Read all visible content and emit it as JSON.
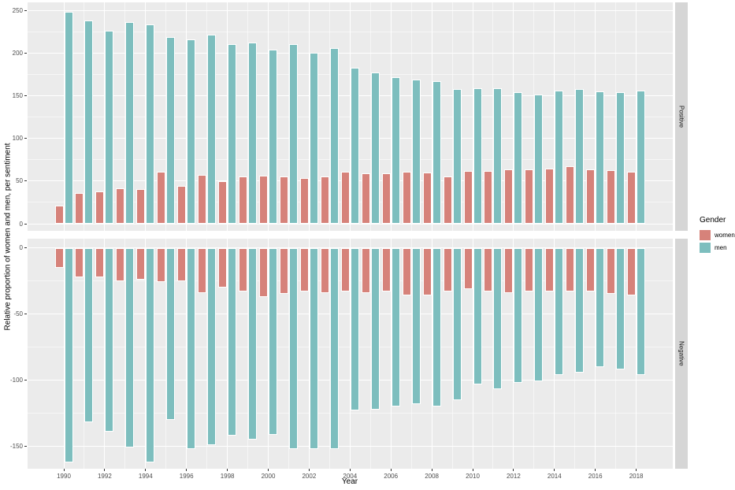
{
  "chart_data": {
    "type": "bar",
    "title": "",
    "xlabel": "Year",
    "ylabel": "Relative proportion of women and men, per sentiment",
    "grid": true,
    "panel_background": "#ebebeb",
    "legend": {
      "title": "Gender",
      "position": "right",
      "items": [
        {
          "label": "women",
          "color": "#d6827a"
        },
        {
          "label": "men",
          "color": "#7dbebe"
        }
      ]
    },
    "facets": [
      {
        "label": "Positive",
        "yticks": [
          0,
          50,
          100,
          150,
          200,
          250
        ],
        "ylim": [
          -8,
          260
        ]
      },
      {
        "label": "Negative",
        "yticks": [
          0,
          -50,
          -100,
          -150
        ],
        "ylim": [
          -167,
          7
        ]
      }
    ],
    "xticks": [
      1990,
      1992,
      1994,
      1996,
      1998,
      2000,
      2002,
      2004,
      2006,
      2008,
      2010,
      2012,
      2014,
      2016,
      2018
    ],
    "years": [
      1990,
      1991,
      1992,
      1993,
      1994,
      1995,
      1996,
      1997,
      1998,
      1999,
      2000,
      2001,
      2002,
      2003,
      2004,
      2005,
      2006,
      2007,
      2008,
      2009,
      2010,
      2011,
      2012,
      2013,
      2014,
      2015,
      2016,
      2017,
      2018
    ],
    "series": [
      {
        "name": "women",
        "color": "#d6827a",
        "positive": [
          21,
          36,
          38,
          42,
          41,
          61,
          44,
          57,
          50,
          55,
          56,
          55,
          54,
          55,
          61,
          59,
          59,
          61,
          60,
          55,
          62,
          62,
          64,
          64,
          65,
          67,
          64,
          63,
          61
        ],
        "negative": [
          -15,
          -22,
          -22,
          -25,
          -24,
          -26,
          -25,
          -34,
          -30,
          -33,
          -37,
          -35,
          -33,
          -34,
          -33,
          -34,
          -33,
          -36,
          -36,
          -33,
          -31,
          -33,
          -34,
          -33,
          -33,
          -33,
          -33,
          -35,
          -36
        ]
      },
      {
        "name": "men",
        "color": "#7dbebe",
        "positive": [
          248,
          238,
          226,
          236,
          234,
          219,
          216,
          222,
          211,
          212,
          204,
          211,
          200,
          206,
          183,
          177,
          172,
          169,
          167,
          158,
          159,
          159,
          154,
          151,
          156,
          158,
          155,
          154,
          156
        ],
        "negative": [
          -162,
          -132,
          -139,
          -151,
          -162,
          -130,
          -152,
          -149,
          -142,
          -145,
          -141,
          -152,
          -152,
          -152,
          -123,
          -122,
          -120,
          -118,
          -120,
          -115,
          -103,
          -107,
          -102,
          -101,
          -96,
          -94,
          -90,
          -92,
          -96
        ]
      }
    ]
  }
}
